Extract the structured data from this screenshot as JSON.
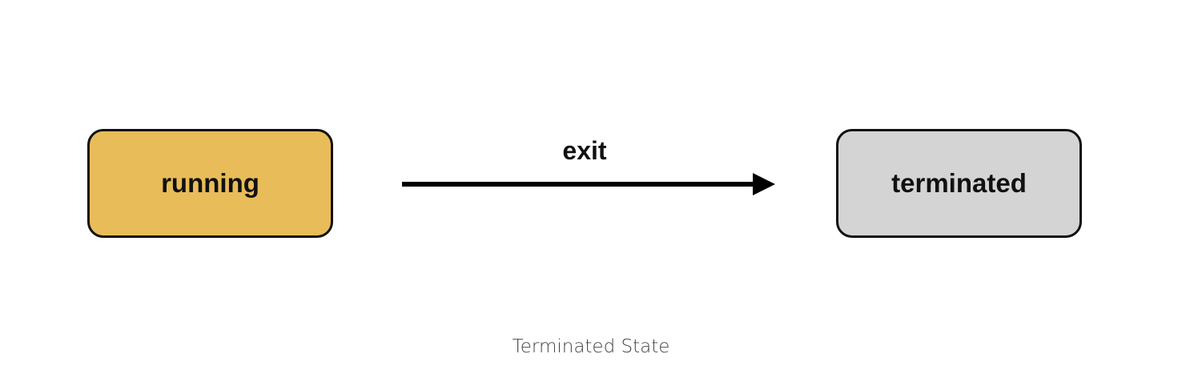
{
  "states": {
    "running": {
      "label": "running",
      "fill": "#E8BC58"
    },
    "terminated": {
      "label": "terminated",
      "fill": "#D4D4D4"
    }
  },
  "transition": {
    "label": "exit",
    "color": "#000000"
  },
  "caption": "Terminated State"
}
